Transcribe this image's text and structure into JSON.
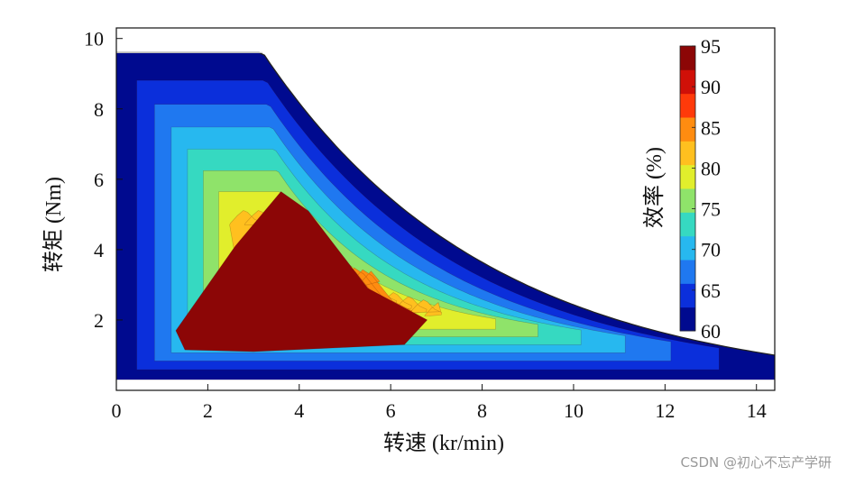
{
  "chart_data": {
    "type": "heatmap",
    "subtype": "filled-contour",
    "xlabel": "转速 (kr/min)",
    "ylabel": "转矩 (Nm)",
    "xlim": [
      0,
      14.4
    ],
    "ylim": [
      0,
      10.3
    ],
    "xticks": [
      0,
      2,
      4,
      6,
      8,
      10,
      12,
      14
    ],
    "yticks": [
      2,
      4,
      6,
      8,
      10
    ],
    "grid": false,
    "operating_envelope": {
      "min_torque_nm": 0.3,
      "max_torque_nm": 9.6,
      "base_speed_krpm": 3.2,
      "torque_at_max_speed_nm": 1.0
    },
    "peak_efficiency_region": {
      "speed_krpm": [
        1.3,
        6.8
      ],
      "torque_nm": [
        1.1,
        5.7
      ]
    },
    "colorbar": {
      "title": "效率 (%)",
      "min": 60,
      "max": 95,
      "ticks": [
        60,
        65,
        70,
        75,
        80,
        85,
        90,
        95
      ],
      "placement": "inside-top-right",
      "colors": [
        "#000a8f",
        "#0b2fdb",
        "#1f78f0",
        "#27b8ef",
        "#36d9c1",
        "#8fe36a",
        "#e1ee2c",
        "#ffc01f",
        "#ff8c10",
        "#ff3a0a",
        "#d01008",
        "#8c0606"
      ]
    }
  },
  "watermark": "CSDN @初心不忘产学研"
}
